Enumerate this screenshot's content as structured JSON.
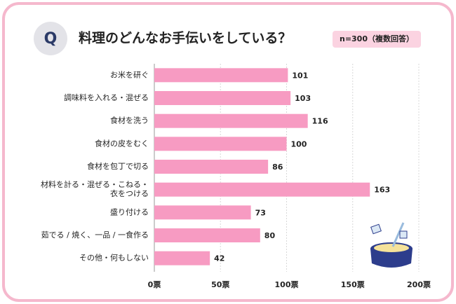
{
  "chart_data": {
    "type": "bar",
    "orientation": "horizontal",
    "title": "料理のどんなお手伝いをしている？",
    "badge": "Q",
    "note": "n=300（複数回答）",
    "categories": [
      "お米を研ぐ",
      "調味料を入れる・混ぜる",
      "食材を洗う",
      "食材の皮をむく",
      "食材を包丁で切る",
      "材料を計る・混ぜる・こねる・\n衣をつける",
      "盛り付ける",
      "茹でる / 焼く、一品 / 一食作る",
      "その他・何もしない"
    ],
    "values": [
      101,
      103,
      116,
      100,
      86,
      163,
      73,
      80,
      42
    ],
    "color": "#f79bc2",
    "xlim": [
      0,
      200
    ],
    "xticks": [
      {
        "value": 0,
        "label": "0票"
      },
      {
        "value": 50,
        "label": "50票"
      },
      {
        "value": 100,
        "label": "100票"
      },
      {
        "value": 150,
        "label": "150票"
      },
      {
        "value": 200,
        "label": "200票"
      }
    ],
    "grid": true
  }
}
